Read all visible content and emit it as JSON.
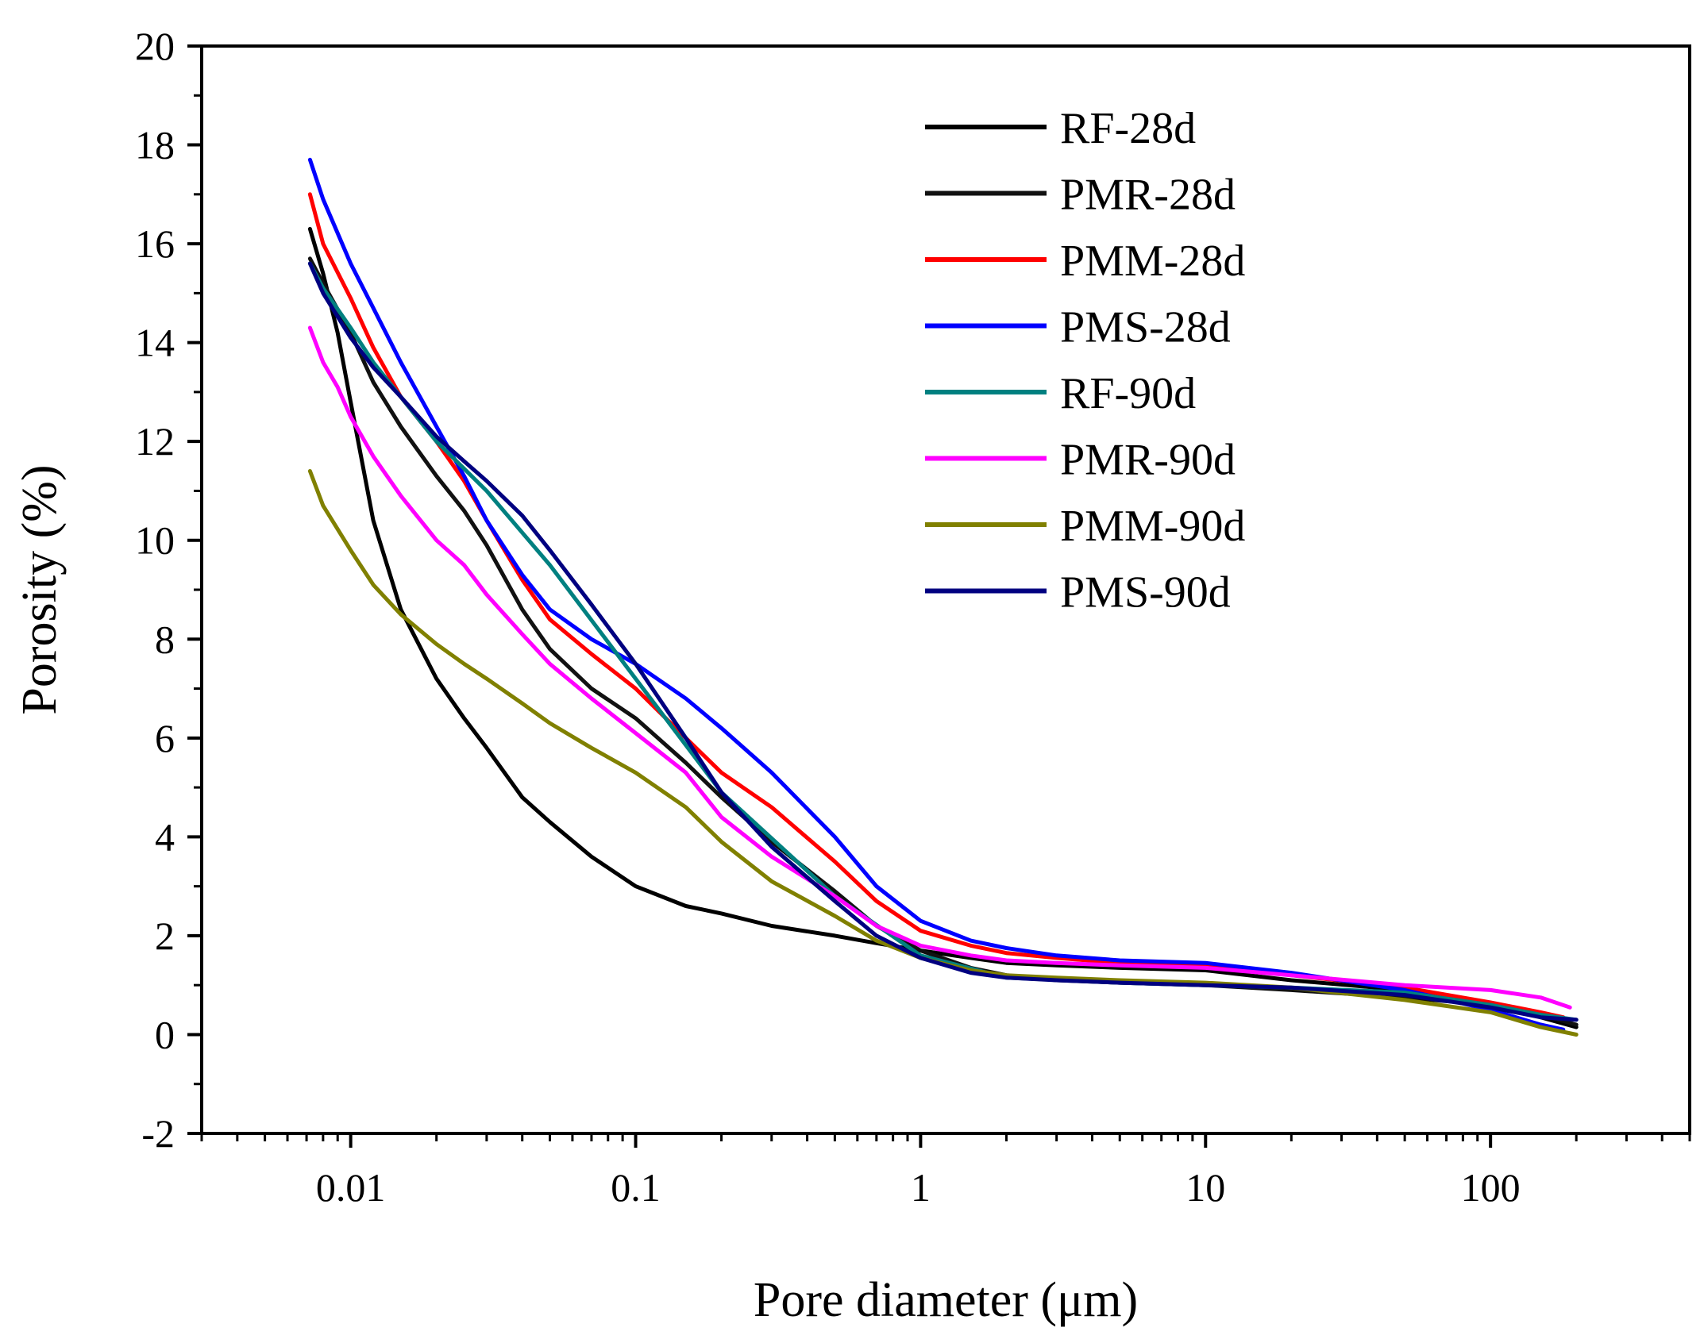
{
  "chart_data": {
    "type": "line",
    "title": "",
    "xlabel": "Pore diameter (μm)",
    "ylabel": "Porosity (%)",
    "xscale": "log",
    "xlim": [
      0.003,
      500
    ],
    "ylim": [
      -2,
      20
    ],
    "xticks": [
      0.01,
      0.1,
      1,
      10,
      100
    ],
    "xtick_labels": [
      "0.01",
      "0.1",
      "1",
      "10",
      "100"
    ],
    "yticks": [
      -2,
      0,
      2,
      4,
      6,
      8,
      10,
      12,
      14,
      16,
      18,
      20
    ],
    "ytick_labels": [
      "-2",
      "0",
      "2",
      "4",
      "6",
      "8",
      "10",
      "12",
      "14",
      "16",
      "18",
      "20"
    ],
    "legend_position": "top-right",
    "series": [
      {
        "name": "RF-28d",
        "color": "#000000",
        "x": [
          0.0072,
          0.008,
          0.009,
          0.01,
          0.012,
          0.015,
          0.02,
          0.025,
          0.03,
          0.04,
          0.05,
          0.07,
          0.1,
          0.15,
          0.2,
          0.3,
          0.5,
          0.7,
          1,
          1.5,
          2,
          3,
          5,
          10,
          20,
          50,
          100,
          150,
          200
        ],
        "y": [
          16.3,
          15.4,
          14.2,
          12.8,
          10.4,
          8.6,
          7.2,
          6.4,
          5.8,
          4.8,
          4.3,
          3.6,
          3.0,
          2.6,
          2.45,
          2.2,
          2.0,
          1.85,
          1.7,
          1.55,
          1.45,
          1.4,
          1.35,
          1.3,
          1.1,
          0.9,
          0.6,
          0.35,
          0.15
        ]
      },
      {
        "name": "PMR-28d",
        "color": "#111111",
        "x": [
          0.0072,
          0.008,
          0.01,
          0.012,
          0.015,
          0.02,
          0.025,
          0.03,
          0.04,
          0.05,
          0.07,
          0.1,
          0.15,
          0.2,
          0.3,
          0.5,
          0.7,
          1,
          1.5,
          2,
          3,
          5,
          10,
          20,
          50,
          100,
          150,
          200
        ],
        "y": [
          15.7,
          15.2,
          14.2,
          13.2,
          12.3,
          11.3,
          10.6,
          9.9,
          8.6,
          7.8,
          7.0,
          6.4,
          5.5,
          4.8,
          3.9,
          2.9,
          2.2,
          1.7,
          1.35,
          1.2,
          1.1,
          1.05,
          1.0,
          0.9,
          0.75,
          0.6,
          0.4,
          0.2
        ]
      },
      {
        "name": "PMM-28d",
        "color": "#ff0000",
        "x": [
          0.0072,
          0.008,
          0.01,
          0.012,
          0.015,
          0.02,
          0.025,
          0.03,
          0.04,
          0.05,
          0.07,
          0.1,
          0.15,
          0.2,
          0.3,
          0.5,
          0.7,
          1,
          1.5,
          2,
          3,
          5,
          10,
          20,
          50,
          100,
          150,
          180
        ],
        "y": [
          17.0,
          16.0,
          14.9,
          13.9,
          12.9,
          12.0,
          11.2,
          10.4,
          9.2,
          8.4,
          7.7,
          7.0,
          6.0,
          5.3,
          4.6,
          3.5,
          2.7,
          2.1,
          1.8,
          1.65,
          1.55,
          1.45,
          1.4,
          1.2,
          0.95,
          0.65,
          0.45,
          0.35
        ]
      },
      {
        "name": "PMS-28d",
        "color": "#0000ff",
        "x": [
          0.0072,
          0.008,
          0.01,
          0.012,
          0.015,
          0.02,
          0.025,
          0.03,
          0.04,
          0.05,
          0.07,
          0.1,
          0.15,
          0.2,
          0.3,
          0.5,
          0.7,
          1,
          1.5,
          2,
          3,
          5,
          10,
          20,
          50,
          100,
          150,
          180
        ],
        "y": [
          17.7,
          16.9,
          15.6,
          14.7,
          13.6,
          12.3,
          11.3,
          10.4,
          9.3,
          8.6,
          8.0,
          7.5,
          6.8,
          6.2,
          5.3,
          4.0,
          3.0,
          2.3,
          1.9,
          1.75,
          1.6,
          1.5,
          1.45,
          1.25,
          0.9,
          0.5,
          0.2,
          0.1
        ]
      },
      {
        "name": "RF-90d",
        "color": "#008080",
        "x": [
          0.0072,
          0.008,
          0.01,
          0.012,
          0.015,
          0.02,
          0.03,
          0.05,
          0.1,
          0.2,
          0.5,
          1,
          2,
          5,
          10,
          20,
          50,
          100,
          150,
          200
        ],
        "y": [
          15.6,
          15.1,
          14.3,
          13.6,
          12.9,
          12.0,
          11.0,
          9.5,
          7.2,
          4.9,
          2.8,
          1.6,
          1.15,
          1.05,
          1.0,
          0.95,
          0.85,
          0.6,
          0.4,
          0.3
        ]
      },
      {
        "name": "PMR-90d",
        "color": "#ff00ff",
        "x": [
          0.0072,
          0.008,
          0.009,
          0.01,
          0.012,
          0.015,
          0.02,
          0.025,
          0.03,
          0.04,
          0.05,
          0.07,
          0.1,
          0.15,
          0.2,
          0.3,
          0.5,
          0.7,
          1,
          1.5,
          2,
          3,
          5,
          10,
          20,
          50,
          100,
          150,
          190
        ],
        "y": [
          14.3,
          13.6,
          13.1,
          12.5,
          11.7,
          10.9,
          10.0,
          9.5,
          8.9,
          8.1,
          7.5,
          6.8,
          6.1,
          5.3,
          4.4,
          3.6,
          2.8,
          2.2,
          1.8,
          1.6,
          1.5,
          1.45,
          1.4,
          1.35,
          1.2,
          1.0,
          0.9,
          0.75,
          0.55
        ]
      },
      {
        "name": "PMM-90d",
        "color": "#808000",
        "x": [
          0.0072,
          0.008,
          0.01,
          0.012,
          0.015,
          0.02,
          0.025,
          0.03,
          0.04,
          0.05,
          0.07,
          0.1,
          0.15,
          0.2,
          0.3,
          0.5,
          0.7,
          1,
          1.5,
          2,
          3,
          5,
          10,
          20,
          50,
          100,
          150,
          200
        ],
        "y": [
          11.4,
          10.7,
          9.8,
          9.1,
          8.5,
          7.9,
          7.5,
          7.2,
          6.7,
          6.3,
          5.8,
          5.3,
          4.6,
          3.9,
          3.1,
          2.4,
          1.9,
          1.55,
          1.3,
          1.2,
          1.15,
          1.1,
          1.05,
          0.95,
          0.7,
          0.45,
          0.15,
          0.0
        ]
      },
      {
        "name": "PMS-90d",
        "color": "#000080",
        "x": [
          0.0072,
          0.008,
          0.01,
          0.012,
          0.015,
          0.02,
          0.025,
          0.03,
          0.04,
          0.05,
          0.07,
          0.1,
          0.15,
          0.2,
          0.3,
          0.5,
          0.7,
          1,
          1.5,
          2,
          3,
          5,
          10,
          20,
          50,
          100,
          150,
          200
        ],
        "y": [
          15.6,
          15.0,
          14.1,
          13.5,
          12.9,
          12.1,
          11.6,
          11.2,
          10.5,
          9.8,
          8.7,
          7.5,
          6.0,
          4.9,
          3.8,
          2.7,
          2.0,
          1.55,
          1.25,
          1.15,
          1.1,
          1.05,
          1.0,
          0.95,
          0.8,
          0.55,
          0.35,
          0.3
        ]
      }
    ]
  }
}
